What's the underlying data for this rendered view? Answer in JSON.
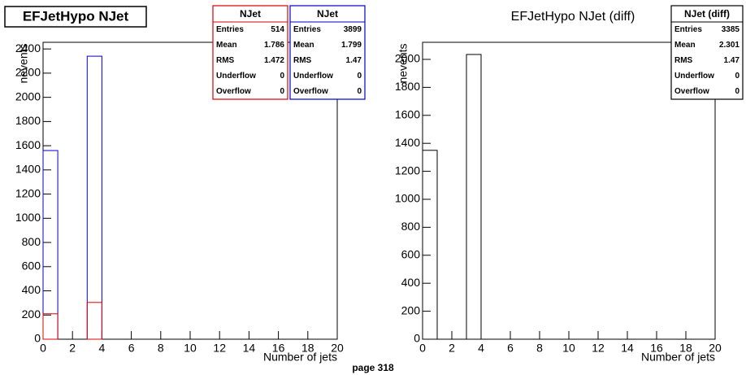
{
  "chart_data": [
    {
      "type": "histogram",
      "title": "EFJetHypo NJet",
      "x_label": "Number of jets",
      "y_label": "nevents",
      "bins": [
        0,
        1,
        2,
        3,
        4,
        5,
        6,
        7,
        8,
        9,
        10,
        11,
        12,
        13,
        14,
        15,
        16,
        17,
        18,
        19,
        20
      ],
      "xlim": [
        0,
        20
      ],
      "xticks": [
        0,
        2,
        4,
        6,
        8,
        10,
        12,
        14,
        16,
        18,
        20
      ],
      "ylim": [
        0,
        2455
      ],
      "yticks": [
        0,
        200,
        400,
        600,
        800,
        1000,
        1200,
        1400,
        1600,
        1800,
        2000,
        2200,
        2400
      ],
      "series": [
        {
          "name": "NJet",
          "color": "#0000cc",
          "values": [
            1560,
            0,
            0,
            2340,
            0,
            0,
            0,
            0,
            0,
            0,
            0,
            0,
            0,
            0,
            0,
            0,
            0,
            0,
            0,
            0
          ],
          "stats": [
            [
              "Entries",
              3899
            ],
            [
              "Mean",
              1.799
            ],
            [
              "RMS",
              1.47
            ],
            [
              "Underflow",
              0
            ],
            [
              "Overflow",
              0
            ]
          ]
        },
        {
          "name": "NJet",
          "color": "#dd0000",
          "values": [
            210,
            0,
            0,
            304,
            0,
            0,
            0,
            0,
            0,
            0,
            0,
            0,
            0,
            0,
            0,
            0,
            0,
            0,
            0,
            0
          ],
          "stats": [
            [
              "Entries",
              514
            ],
            [
              "Mean",
              1.786
            ],
            [
              "RMS",
              1.472
            ],
            [
              "Underflow",
              0
            ],
            [
              "Overflow",
              0
            ]
          ]
        }
      ]
    },
    {
      "type": "histogram",
      "title": "EFJetHypo NJet (diff)",
      "x_label": "Number of jets",
      "y_label": "nevents",
      "bins": [
        0,
        1,
        2,
        3,
        4,
        5,
        6,
        7,
        8,
        9,
        10,
        11,
        12,
        13,
        14,
        15,
        16,
        17,
        18,
        19,
        20
      ],
      "xlim": [
        0,
        20
      ],
      "xticks": [
        0,
        2,
        4,
        6,
        8,
        10,
        12,
        14,
        16,
        18,
        20
      ],
      "ylim": [
        0,
        2122
      ],
      "yticks": [
        0,
        200,
        400,
        600,
        800,
        1000,
        1200,
        1400,
        1600,
        1800,
        2000
      ],
      "series": [
        {
          "name": "NJet (diff)",
          "color": "#000000",
          "values": [
            1350,
            0,
            0,
            2035,
            0,
            0,
            0,
            0,
            0,
            0,
            0,
            0,
            0,
            0,
            0,
            0,
            0,
            0,
            0,
            0
          ],
          "stats": [
            [
              "Entries",
              3385
            ],
            [
              "Mean",
              2.301
            ],
            [
              "RMS",
              1.47
            ],
            [
              "Underflow",
              0
            ],
            [
              "Overflow",
              0
            ]
          ]
        }
      ]
    }
  ],
  "footer": "page 318"
}
